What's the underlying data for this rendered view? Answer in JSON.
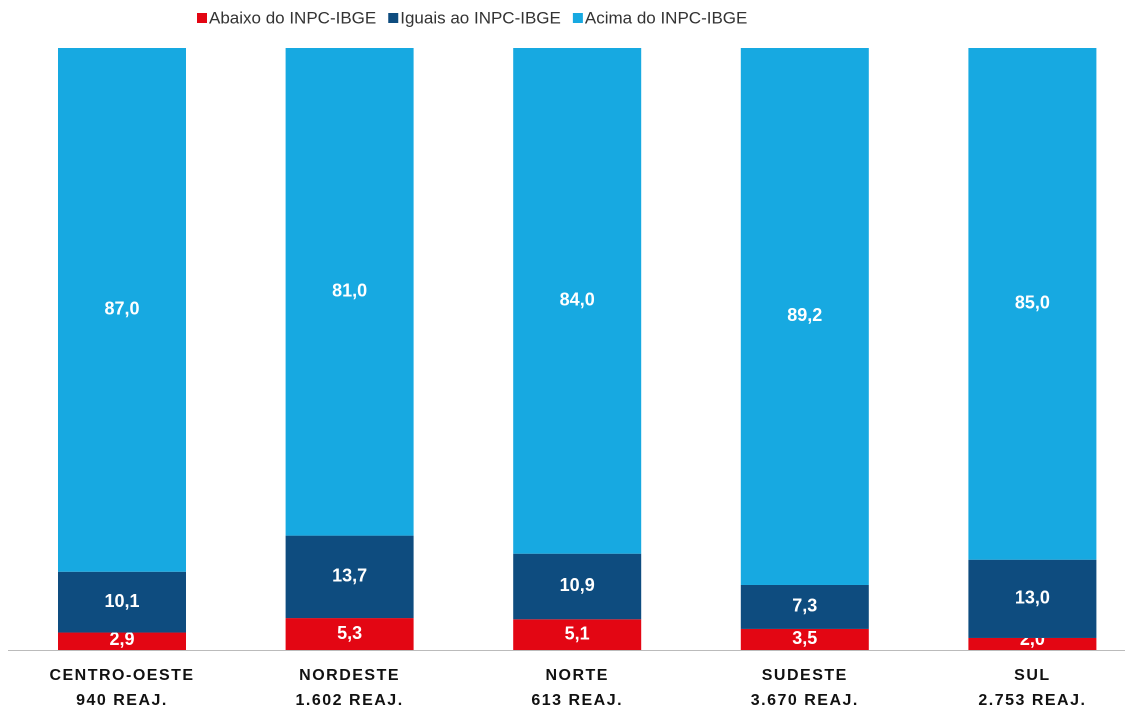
{
  "chart_data": {
    "type": "stacked_bar",
    "categories": [
      "CENTRO-OESTE",
      "NORDESTE",
      "NORTE",
      "SUDESTE",
      "SUL"
    ],
    "category_subtitles": [
      "940 REAJ.",
      "1.602 REAJ.",
      "613 REAJ.",
      "3.670 REAJ.",
      "2.753 REAJ."
    ],
    "series": [
      {
        "name": "Abaixo do INPC-IBGE",
        "color": "#e30613",
        "values": [
          2.9,
          5.3,
          5.1,
          3.5,
          2.0
        ],
        "value_labels": [
          "2,9",
          "5,3",
          "5,1",
          "3,5",
          "2,0"
        ]
      },
      {
        "name": "Iguais ao INPC-IBGE",
        "color": "#0e4c7f",
        "values": [
          10.1,
          13.7,
          10.9,
          7.3,
          13.0
        ],
        "value_labels": [
          "10,1",
          "13,7",
          "10,9",
          "7,3",
          "13,0"
        ]
      },
      {
        "name": "Acima do INPC-IBGE",
        "color": "#17a9e1",
        "values": [
          87.0,
          81.0,
          84.0,
          89.2,
          85.0
        ],
        "value_labels": [
          "87,0",
          "81,0",
          "84,0",
          "89,2",
          "85,0"
        ]
      }
    ],
    "ylim": [
      0,
      100
    ],
    "legend": "top"
  }
}
